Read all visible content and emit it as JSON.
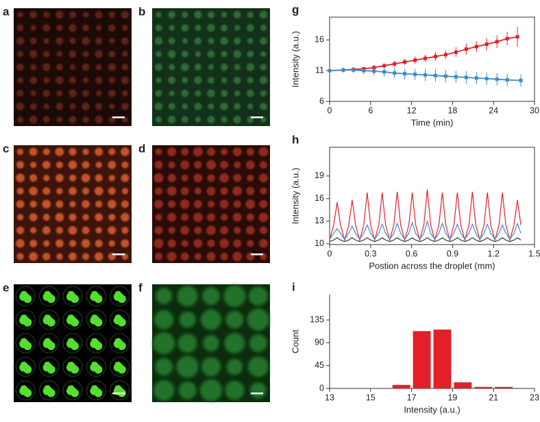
{
  "panels": [
    {
      "label": "a"
    },
    {
      "label": "b"
    },
    {
      "label": "c"
    },
    {
      "label": "d"
    },
    {
      "label": "e"
    },
    {
      "label": "f"
    }
  ],
  "chart_data": [
    {
      "type": "line",
      "panel_label": "g",
      "xlabel": "Time (min)",
      "ylabel": "Intensity (a.u.)",
      "frame": true,
      "xlim": [
        0,
        30
      ],
      "xticks": [
        0,
        6,
        12,
        18,
        24,
        30
      ],
      "ylim": [
        6,
        19.7
      ],
      "yticks": [
        6,
        11,
        16
      ],
      "series": [
        {
          "color": "#e32027",
          "x": [
            0,
            2,
            3.5,
            5,
            6.5,
            8,
            9.5,
            11,
            12.5,
            14,
            15.5,
            17,
            18.5,
            20,
            21.5,
            23,
            24.5,
            26,
            27.5
          ],
          "values": [
            11.0,
            11.1,
            11.2,
            11.3,
            11.5,
            11.8,
            12.1,
            12.4,
            12.7,
            13.0,
            13.3,
            13.6,
            14.0,
            14.5,
            14.9,
            15.3,
            15.7,
            16.2,
            16.5
          ],
          "errors": [
            0.4,
            0.3,
            0.3,
            0.3,
            0.4,
            0.4,
            0.5,
            0.5,
            0.6,
            0.6,
            0.7,
            0.7,
            0.8,
            0.9,
            0.9,
            1.0,
            1.0,
            1.1,
            1.6
          ]
        },
        {
          "color": "#3b8bc8",
          "x": [
            0,
            2,
            3.5,
            5,
            6.5,
            8,
            9.5,
            11,
            12.5,
            14,
            15.5,
            17,
            18.5,
            20,
            21.5,
            23,
            24.5,
            26,
            28
          ],
          "values": [
            11.0,
            11.1,
            11.1,
            11.0,
            10.9,
            10.8,
            10.6,
            10.5,
            10.4,
            10.3,
            10.2,
            10.1,
            10.0,
            9.9,
            9.8,
            9.7,
            9.6,
            9.5,
            9.4
          ],
          "errors": [
            0.4,
            0.4,
            0.5,
            0.6,
            0.7,
            0.8,
            0.8,
            0.9,
            0.9,
            1.0,
            1.0,
            1.0,
            1.0,
            1.0,
            1.0,
            1.0,
            1.0,
            1.0,
            1.0
          ]
        }
      ]
    },
    {
      "type": "line",
      "panel_label": "h",
      "xlabel": "Postion across the droplet (mm)",
      "ylabel": "Intensity (a.u.)",
      "frame": true,
      "xlim": [
        0,
        1.5
      ],
      "xticks": [
        0,
        0.3,
        0.6,
        0.9,
        1.2,
        1.5
      ],
      "ylim": [
        9.9,
        22.8
      ],
      "yticks": [
        10,
        13,
        16,
        19
      ],
      "x": [
        0,
        0.03,
        0.055,
        0.08,
        0.11,
        0.14,
        0.165,
        0.19,
        0.22,
        0.25,
        0.275,
        0.3,
        0.33,
        0.36,
        0.385,
        0.41,
        0.44,
        0.47,
        0.495,
        0.52,
        0.55,
        0.58,
        0.605,
        0.63,
        0.66,
        0.69,
        0.715,
        0.74,
        0.77,
        0.8,
        0.825,
        0.85,
        0.88,
        0.91,
        0.935,
        0.96,
        0.99,
        1.02,
        1.045,
        1.07,
        1.1,
        1.13,
        1.155,
        1.18,
        1.21,
        1.24,
        1.265,
        1.29,
        1.32,
        1.35,
        1.375,
        1.4
      ],
      "series": [
        {
          "color": "#e32027",
          "values": [
            10.5,
            12.5,
            15.5,
            12.5,
            10.5,
            12.5,
            15.8,
            12.5,
            10.5,
            12.5,
            16.8,
            12.5,
            10.5,
            12.5,
            16.8,
            12.5,
            10.5,
            12.5,
            16.9,
            12.5,
            10.5,
            12.5,
            16.8,
            12.5,
            10.5,
            12.5,
            17.2,
            12.5,
            10.5,
            12.5,
            16.8,
            12.5,
            10.5,
            12.5,
            16.8,
            12.5,
            10.5,
            12.5,
            16.9,
            12.5,
            10.5,
            12.5,
            16.8,
            12.5,
            10.5,
            12.5,
            16.8,
            12.5,
            10.5,
            12.5,
            15.8,
            12.5
          ]
        },
        {
          "color": "#3b8bc8",
          "values": [
            10.6,
            11.4,
            12.0,
            11.4,
            10.6,
            11.4,
            12.3,
            11.4,
            10.6,
            11.4,
            12.5,
            11.4,
            10.6,
            11.4,
            12.6,
            11.4,
            10.6,
            11.4,
            12.7,
            11.4,
            10.6,
            11.4,
            12.8,
            11.4,
            10.6,
            11.4,
            13.0,
            11.4,
            10.6,
            11.4,
            12.7,
            11.4,
            10.6,
            11.4,
            12.6,
            11.4,
            10.6,
            11.4,
            12.6,
            11.4,
            10.6,
            11.4,
            12.6,
            11.4,
            10.6,
            11.4,
            12.5,
            11.4,
            10.6,
            11.4,
            12.7,
            11.4
          ]
        },
        {
          "color": "#333333",
          "values": [
            10.3,
            10.5,
            10.8,
            10.5,
            10.3,
            10.5,
            10.8,
            10.5,
            10.3,
            10.5,
            10.8,
            10.5,
            10.3,
            10.5,
            10.8,
            10.5,
            10.3,
            10.5,
            10.8,
            10.5,
            10.3,
            10.5,
            10.8,
            10.5,
            10.3,
            10.5,
            10.8,
            10.5,
            10.3,
            10.5,
            10.8,
            10.5,
            10.3,
            10.5,
            10.8,
            10.5,
            10.3,
            10.5,
            10.8,
            10.5,
            10.3,
            10.5,
            10.8,
            10.5,
            10.3,
            10.5,
            10.8,
            10.5,
            10.3,
            10.5,
            10.8,
            10.5
          ]
        }
      ]
    },
    {
      "type": "histogram",
      "panel_label": "i",
      "xlabel": "Intensity (a.u.)",
      "ylabel": "Count",
      "frame": false,
      "color": "#e32027",
      "xlim": [
        13,
        23
      ],
      "xticks": [
        13,
        15,
        17,
        19,
        21,
        23
      ],
      "ylim": [
        0,
        185
      ],
      "yticks": [
        0,
        45,
        90,
        135
      ],
      "bins": [
        16,
        17,
        18,
        19,
        20,
        21,
        22
      ],
      "values": [
        7,
        113,
        116,
        12,
        3,
        3
      ]
    }
  ]
}
